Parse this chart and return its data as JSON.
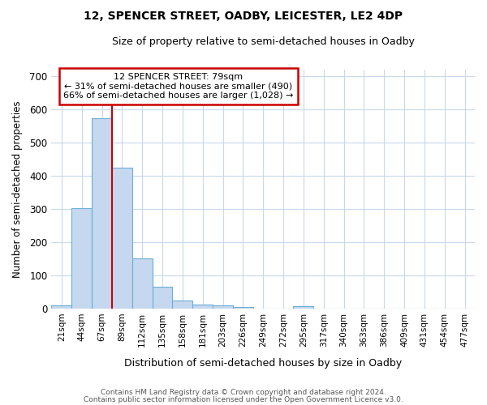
{
  "title1": "12, SPENCER STREET, OADBY, LEICESTER, LE2 4DP",
  "title2": "Size of property relative to semi-detached houses in Oadby",
  "xlabel": "Distribution of semi-detached houses by size in Oadby",
  "ylabel": "Number of semi-detached properties",
  "footnote1": "Contains HM Land Registry data © Crown copyright and database right 2024.",
  "footnote2": "Contains public sector information licensed under the Open Government Licence v3.0.",
  "bar_labels": [
    "21sqm",
    "44sqm",
    "67sqm",
    "89sqm",
    "112sqm",
    "135sqm",
    "158sqm",
    "181sqm",
    "203sqm",
    "226sqm",
    "249sqm",
    "272sqm",
    "295sqm",
    "317sqm",
    "340sqm",
    "363sqm",
    "386sqm",
    "409sqm",
    "431sqm",
    "454sqm",
    "477sqm"
  ],
  "bar_values": [
    10,
    303,
    572,
    425,
    152,
    65,
    25,
    13,
    10,
    5,
    0,
    0,
    7,
    0,
    0,
    0,
    0,
    0,
    0,
    0,
    0
  ],
  "bar_color": "#c5d8ef",
  "bar_edge_color": "#6aaed6",
  "highlight_label": "12 SPENCER STREET: 79sqm",
  "annotation_line1": "← 31% of semi-detached houses are smaller (490)",
  "annotation_line2": "66% of semi-detached houses are larger (1,028) →",
  "vline_color": "#cc0000",
  "annotation_box_edge": "#cc0000",
  "ylim": [
    0,
    720
  ],
  "yticks": [
    0,
    100,
    200,
    300,
    400,
    500,
    600,
    700
  ],
  "plot_bg_color": "#ffffff",
  "fig_bg_color": "#ffffff",
  "grid_color": "#c8d8ec",
  "vline_x_index": 2.52
}
